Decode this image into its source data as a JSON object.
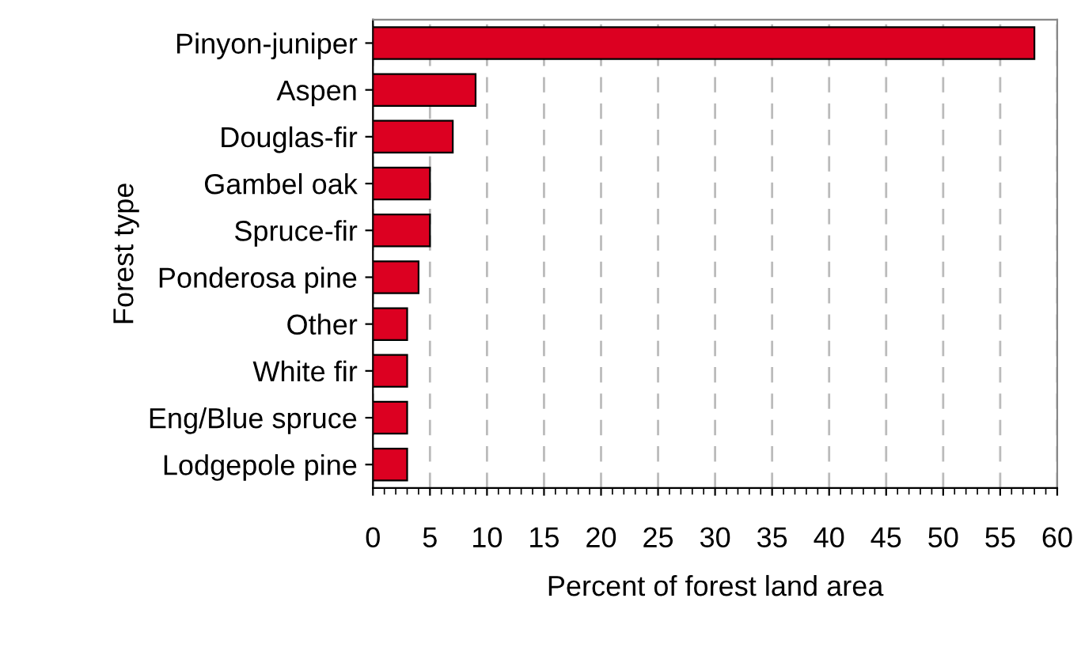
{
  "chart_data": {
    "type": "bar",
    "orientation": "horizontal",
    "xlabel": "Percent of forest land area",
    "ylabel": "Forest type",
    "categories": [
      "Pinyon-juniper",
      "Aspen",
      "Douglas-fir",
      "Gambel oak",
      "Spruce-fir",
      "Ponderosa pine",
      "Other",
      "White fir",
      "Eng/Blue spruce",
      "Lodgepole pine"
    ],
    "values": [
      58,
      9,
      7,
      5,
      5,
      4,
      3,
      3,
      3,
      3
    ],
    "color": "#dc0021",
    "xlim": [
      0,
      60
    ],
    "xticks": [
      0,
      5,
      10,
      15,
      20,
      25,
      30,
      35,
      40,
      45,
      50,
      55,
      60
    ],
    "grid": "x",
    "legend": false
  }
}
